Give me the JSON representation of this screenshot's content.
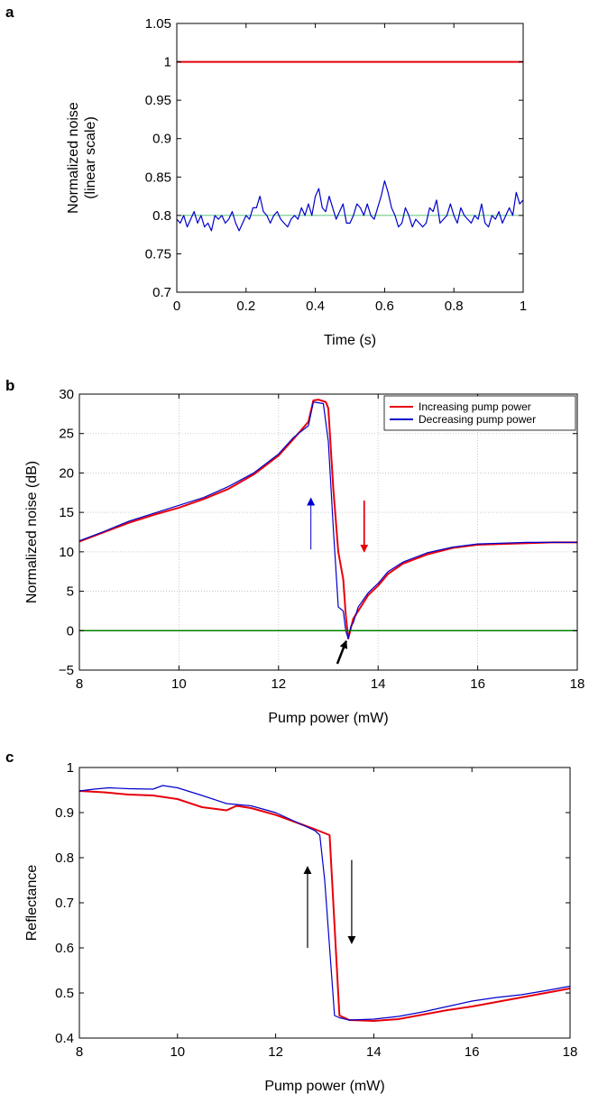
{
  "chart_data": [
    {
      "panel": "a",
      "type": "line",
      "xlabel": "Time (s)",
      "ylabel_lines": [
        "Normalized noise",
        "(linear scale)"
      ],
      "xlim": [
        0,
        1
      ],
      "ylim": [
        0.7,
        1.05
      ],
      "x_ticks": [
        0,
        0.2,
        0.4,
        0.6,
        0.8,
        1
      ],
      "y_ticks": [
        0.7,
        0.75,
        0.8,
        0.85,
        0.9,
        0.95,
        1,
        1.05
      ],
      "x_tick_labels": [
        "0",
        "0.2",
        "0.4",
        "0.6",
        "0.8",
        "1"
      ],
      "y_tick_labels": [
        "0.7",
        "0.75",
        "0.8",
        "0.85",
        "0.9",
        "0.95",
        "1",
        "1.05"
      ],
      "grid": false,
      "series": [
        {
          "color": "#e8000b",
          "width": 2,
          "x": [
            0,
            1
          ],
          "y": [
            1.0,
            1.0
          ]
        },
        {
          "color": "#22b14c",
          "width": 0.8,
          "x": [
            0,
            1
          ],
          "y": [
            0.8,
            0.8
          ]
        },
        {
          "color": "#0000cc",
          "width": 1.2,
          "x": [
            0,
            0.01,
            0.02,
            0.03,
            0.04,
            0.05,
            0.06,
            0.07,
            0.08,
            0.09,
            0.1,
            0.11,
            0.12,
            0.13,
            0.14,
            0.15,
            0.16,
            0.17,
            0.18,
            0.19,
            0.2,
            0.21,
            0.22,
            0.23,
            0.24,
            0.25,
            0.26,
            0.27,
            0.28,
            0.29,
            0.3,
            0.31,
            0.32,
            0.33,
            0.34,
            0.35,
            0.36,
            0.37,
            0.38,
            0.39,
            0.4,
            0.41,
            0.42,
            0.43,
            0.44,
            0.45,
            0.46,
            0.47,
            0.48,
            0.49,
            0.5,
            0.51,
            0.52,
            0.53,
            0.54,
            0.55,
            0.56,
            0.57,
            0.58,
            0.59,
            0.6,
            0.61,
            0.62,
            0.63,
            0.64,
            0.65,
            0.66,
            0.67,
            0.68,
            0.69,
            0.7,
            0.71,
            0.72,
            0.73,
            0.74,
            0.75,
            0.76,
            0.77,
            0.78,
            0.79,
            0.8,
            0.81,
            0.82,
            0.83,
            0.84,
            0.85,
            0.86,
            0.87,
            0.88,
            0.89,
            0.9,
            0.91,
            0.92,
            0.93,
            0.94,
            0.95,
            0.96,
            0.97,
            0.98,
            0.99,
            1.0
          ],
          "y": [
            0.795,
            0.79,
            0.8,
            0.785,
            0.795,
            0.805,
            0.79,
            0.8,
            0.785,
            0.79,
            0.78,
            0.8,
            0.795,
            0.8,
            0.79,
            0.795,
            0.805,
            0.79,
            0.78,
            0.79,
            0.8,
            0.795,
            0.81,
            0.81,
            0.825,
            0.805,
            0.8,
            0.79,
            0.8,
            0.805,
            0.795,
            0.79,
            0.785,
            0.795,
            0.8,
            0.795,
            0.81,
            0.8,
            0.815,
            0.8,
            0.825,
            0.835,
            0.81,
            0.805,
            0.825,
            0.81,
            0.795,
            0.805,
            0.815,
            0.79,
            0.79,
            0.8,
            0.815,
            0.81,
            0.8,
            0.815,
            0.8,
            0.795,
            0.81,
            0.825,
            0.845,
            0.83,
            0.81,
            0.8,
            0.785,
            0.79,
            0.81,
            0.8,
            0.785,
            0.795,
            0.79,
            0.785,
            0.79,
            0.81,
            0.805,
            0.82,
            0.79,
            0.795,
            0.8,
            0.815,
            0.8,
            0.79,
            0.81,
            0.8,
            0.795,
            0.79,
            0.8,
            0.795,
            0.815,
            0.79,
            0.785,
            0.8,
            0.795,
            0.805,
            0.79,
            0.8,
            0.81,
            0.8,
            0.83,
            0.815,
            0.82
          ]
        }
      ]
    },
    {
      "panel": "b",
      "type": "line",
      "xlabel": "Pump power (mW)",
      "ylabel_lines": [
        "Normalized noise (dB)"
      ],
      "xlim": [
        8,
        18
      ],
      "ylim": [
        -5,
        30
      ],
      "x_ticks": [
        8,
        10,
        12,
        14,
        16,
        18
      ],
      "y_ticks": [
        -5,
        0,
        5,
        10,
        15,
        20,
        25,
        30
      ],
      "x_tick_labels": [
        "8",
        "10",
        "12",
        "14",
        "16",
        "18"
      ],
      "y_tick_labels": [
        "−5",
        "0",
        "5",
        "10",
        "15",
        "20",
        "25",
        "30"
      ],
      "grid": true,
      "legend": {
        "position": "top-right",
        "entries": [
          {
            "label": "Increasing pump power",
            "color": "#e8000b"
          },
          {
            "label": "Decreasing pump power",
            "color": "#0000cc"
          }
        ]
      },
      "series": [
        {
          "name": "Increasing pump power",
          "color": "#e8000b",
          "width": 2,
          "x": [
            8,
            8.5,
            9,
            9.5,
            10,
            10.5,
            11,
            11.5,
            12,
            12.3,
            12.6,
            12.7,
            12.8,
            12.95,
            13.0,
            13.1,
            13.2,
            13.3,
            13.35,
            13.4,
            13.5,
            13.6,
            13.8,
            14,
            14.2,
            14.5,
            15,
            15.5,
            16,
            16.5,
            17,
            17.5,
            18
          ],
          "y": [
            11.3,
            12.5,
            13.7,
            14.7,
            15.6,
            16.7,
            18,
            19.8,
            22.2,
            24.3,
            26.5,
            29.2,
            29.3,
            29.0,
            28.2,
            18.0,
            10.0,
            6.5,
            2.0,
            -1.0,
            1.5,
            2.5,
            4.5,
            5.7,
            7.2,
            8.5,
            9.7,
            10.5,
            10.9,
            11.0,
            11.1,
            11.2,
            11.2
          ]
        },
        {
          "name": "Decreasing pump power",
          "color": "#0000cc",
          "width": 1.2,
          "x": [
            8,
            8.5,
            9,
            9.5,
            10,
            10.5,
            11,
            11.5,
            12,
            12.3,
            12.6,
            12.7,
            12.9,
            13.0,
            13.1,
            13.2,
            13.3,
            13.35,
            13.4,
            13.45,
            13.5,
            13.6,
            13.8,
            14,
            14.2,
            14.5,
            15,
            15.5,
            16,
            16.5,
            17,
            17.5,
            18
          ],
          "y": [
            11.4,
            12.6,
            13.9,
            14.9,
            15.9,
            16.9,
            18.3,
            20.0,
            22.4,
            24.5,
            26.0,
            29.0,
            28.8,
            24.0,
            13.0,
            3.0,
            2.5,
            0.0,
            -1.0,
            0.5,
            1.0,
            3.0,
            4.8,
            6.0,
            7.5,
            8.7,
            9.9,
            10.6,
            11.0,
            11.1,
            11.2,
            11.2,
            11.2
          ]
        },
        {
          "color": "#008000",
          "width": 1.5,
          "x": [
            8,
            18
          ],
          "y": [
            0,
            0
          ]
        }
      ],
      "annotations": [
        {
          "kind": "arrow",
          "color": "#0000cc",
          "width": 1,
          "from": [
            12.65,
            10.3
          ],
          "to": [
            12.65,
            16.8
          ]
        },
        {
          "kind": "arrow",
          "color": "#e8000b",
          "width": 1.8,
          "from": [
            13.72,
            16.5
          ],
          "to": [
            13.72,
            10.0
          ]
        },
        {
          "kind": "arrow",
          "color": "#000000",
          "width": 2.5,
          "from": [
            13.18,
            -4.2
          ],
          "to": [
            13.36,
            -1.3
          ]
        }
      ]
    },
    {
      "panel": "c",
      "type": "line",
      "xlabel": "Pump power (mW)",
      "ylabel_lines": [
        "Reflectance"
      ],
      "xlim": [
        8,
        18
      ],
      "ylim": [
        0.4,
        1.0
      ],
      "x_ticks": [
        8,
        10,
        12,
        14,
        16,
        18
      ],
      "y_ticks": [
        0.4,
        0.5,
        0.6,
        0.7,
        0.8,
        0.9,
        1.0
      ],
      "x_tick_labels": [
        "8",
        "10",
        "12",
        "14",
        "16",
        "18"
      ],
      "y_tick_labels": [
        "0.4",
        "0.5",
        "0.6",
        "0.7",
        "0.8",
        "0.9",
        "1"
      ],
      "grid": false,
      "series": [
        {
          "color": "#e8000b",
          "width": 2,
          "x": [
            8,
            8.5,
            9,
            9.5,
            10,
            10.5,
            11,
            11.2,
            11.5,
            12,
            12.5,
            12.8,
            13.1,
            13.3,
            13.5,
            14,
            14.5,
            15,
            15.5,
            16,
            16.5,
            17,
            17.5,
            18
          ],
          "y": [
            0.948,
            0.945,
            0.94,
            0.938,
            0.93,
            0.912,
            0.905,
            0.915,
            0.91,
            0.895,
            0.875,
            0.863,
            0.85,
            0.45,
            0.44,
            0.438,
            0.442,
            0.452,
            0.462,
            0.47,
            0.48,
            0.49,
            0.5,
            0.51
          ]
        },
        {
          "color": "#0000cc",
          "width": 1.2,
          "x": [
            8,
            8.3,
            8.6,
            9,
            9.5,
            9.7,
            10,
            10.5,
            11,
            11.5,
            12,
            12.5,
            12.8,
            12.9,
            13.0,
            13.1,
            13.2,
            13.3,
            13.5,
            14,
            14.5,
            15,
            15.5,
            16,
            16.5,
            17,
            17.5,
            18
          ],
          "y": [
            0.948,
            0.952,
            0.955,
            0.953,
            0.952,
            0.96,
            0.955,
            0.938,
            0.92,
            0.915,
            0.9,
            0.875,
            0.86,
            0.85,
            0.75,
            0.6,
            0.45,
            0.445,
            0.44,
            0.442,
            0.448,
            0.458,
            0.47,
            0.482,
            0.49,
            0.496,
            0.505,
            0.515
          ]
        }
      ],
      "annotations": [
        {
          "kind": "arrow",
          "color": "#000000",
          "width": 1.2,
          "from": [
            12.65,
            0.6
          ],
          "to": [
            12.65,
            0.78
          ]
        },
        {
          "kind": "arrow",
          "color": "#000000",
          "width": 1.2,
          "from": [
            13.55,
            0.795
          ],
          "to": [
            13.55,
            0.61
          ]
        }
      ]
    }
  ],
  "panel_letters": {
    "a": "a",
    "b": "b",
    "c": "c"
  }
}
